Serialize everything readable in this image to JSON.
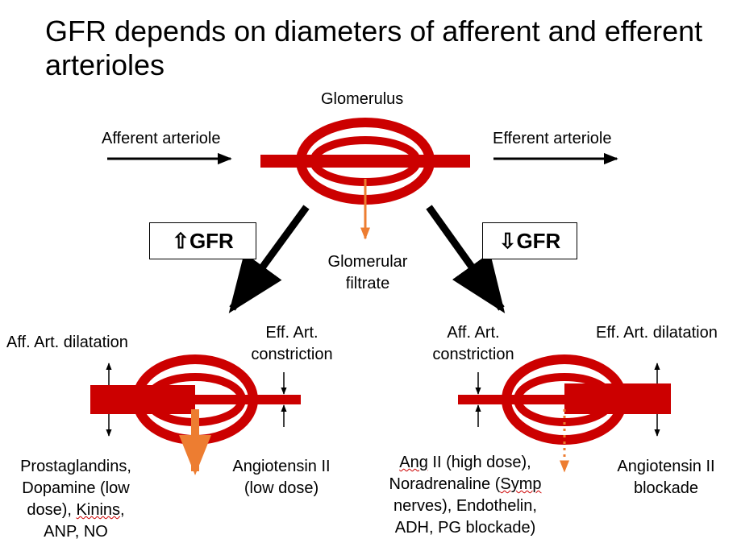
{
  "title": "GFR depends on diameters of afferent and efferent arterioles",
  "top": {
    "glomerulus": "Glomerulus",
    "afferent": "Afferent arteriole",
    "efferent": "Efferent arteriole",
    "filtrate_line1": "Glomerular",
    "filtrate_line2": "filtrate"
  },
  "increase": {
    "label": "⇧GFR"
  },
  "decrease": {
    "label": "⇩GFR"
  },
  "left_case": {
    "aff_label": "Aff. Art. dilatation",
    "eff_label_line1": "Eff. Art.",
    "eff_label_line2": "constriction",
    "aff_causes": [
      "Prostaglandins,",
      "Dopamine (low",
      "dose), ",
      "Kinins",
      ",",
      "ANP, NO"
    ],
    "eff_causes": [
      "Angiotensin II",
      "(low dose)"
    ]
  },
  "right_case": {
    "aff_label_line1": "Aff. Art.",
    "aff_label_line2": "constriction",
    "eff_label": "Eff. Art. dilatation",
    "aff_causes_l1_a": "Ang",
    "aff_causes_l1_b": " II (high dose),",
    "aff_causes_l2_a": "Noradrenaline (",
    "aff_causes_l2_b": "Symp",
    "aff_causes_l3": "nerves), Endothelin,",
    "aff_causes_l4": "ADH, PG blockade)",
    "eff_causes": [
      "Angiotensin II",
      "blockade"
    ]
  },
  "colors": {
    "vessel": "#cc0000",
    "filtrate": "#ed7d31",
    "arrow": "#000000"
  }
}
